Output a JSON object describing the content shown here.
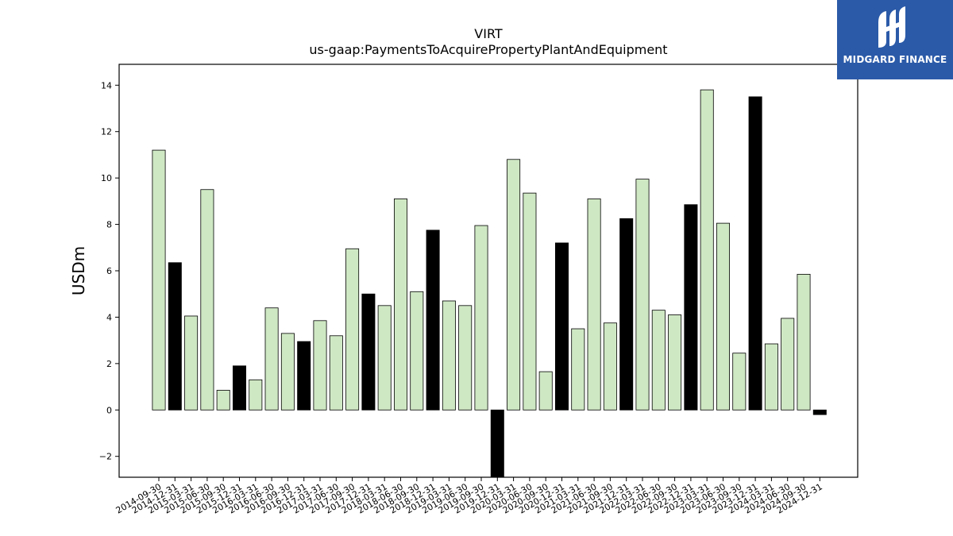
{
  "chart_data": {
    "type": "bar",
    "title": "VIRT",
    "subtitle": "us-gaap:PaymentsToAcquirePropertyPlantAndEquipment",
    "xlabel": "",
    "ylabel": "USDm",
    "ylim": [
      -2.9,
      14.9
    ],
    "yticks": [
      -2,
      0,
      2,
      4,
      6,
      8,
      10,
      12,
      14
    ],
    "ytick_labels": [
      "−2",
      "0",
      "2",
      "4",
      "6",
      "8",
      "10",
      "12",
      "14"
    ],
    "grid": false,
    "categories": [
      "2014-09-30",
      "2014-12-31",
      "2015-03-31",
      "2015-06-30",
      "2015-09-30",
      "2015-12-31",
      "2016-03-31",
      "2016-06-30",
      "2016-09-30",
      "2016-12-31",
      "2017-03-31",
      "2017-06-30",
      "2017-09-30",
      "2017-12-31",
      "2018-03-31",
      "2018-06-30",
      "2018-09-30",
      "2018-12-31",
      "2019-03-31",
      "2019-06-30",
      "2019-09-30",
      "2019-12-31",
      "2020-03-31",
      "2020-06-30",
      "2020-09-30",
      "2020-12-31",
      "2021-03-31",
      "2021-06-30",
      "2021-09-30",
      "2021-12-31",
      "2022-03-31",
      "2022-06-30",
      "2022-09-30",
      "2022-12-31",
      "2023-03-31",
      "2023-06-30",
      "2023-09-30",
      "2023-12-31",
      "2024-03-31",
      "2024-06-30",
      "2024-09-30",
      "2024-12-31"
    ],
    "values": [
      11.2,
      6.35,
      4.05,
      9.5,
      0.85,
      1.9,
      1.3,
      4.4,
      3.3,
      2.95,
      3.85,
      3.2,
      6.95,
      5.0,
      4.5,
      9.1,
      5.1,
      7.75,
      4.7,
      4.5,
      7.95,
      -2.9,
      10.8,
      9.35,
      1.65,
      7.2,
      3.5,
      9.1,
      3.75,
      8.25,
      9.95,
      4.3,
      4.1,
      8.85,
      13.8,
      8.05,
      2.45,
      13.5,
      2.85,
      3.95,
      5.85,
      -0.2
    ],
    "bar_kind": [
      "q",
      "x",
      "q",
      "q",
      "q",
      "x",
      "q",
      "q",
      "q",
      "x",
      "q",
      "q",
      "q",
      "x",
      "q",
      "q",
      "q",
      "x",
      "q",
      "q",
      "q",
      "x",
      "q",
      "q",
      "q",
      "x",
      "q",
      "q",
      "q",
      "x",
      "q",
      "q",
      "q",
      "x",
      "q",
      "q",
      "q",
      "x",
      "q",
      "q",
      "q",
      "x"
    ],
    "colors": {
      "quarter": "#cfe8c4",
      "year_end": "#000000",
      "edge": "#000000"
    }
  },
  "logo": {
    "text": "MIDGARD FINANCE",
    "background": "#2b5aa8"
  }
}
